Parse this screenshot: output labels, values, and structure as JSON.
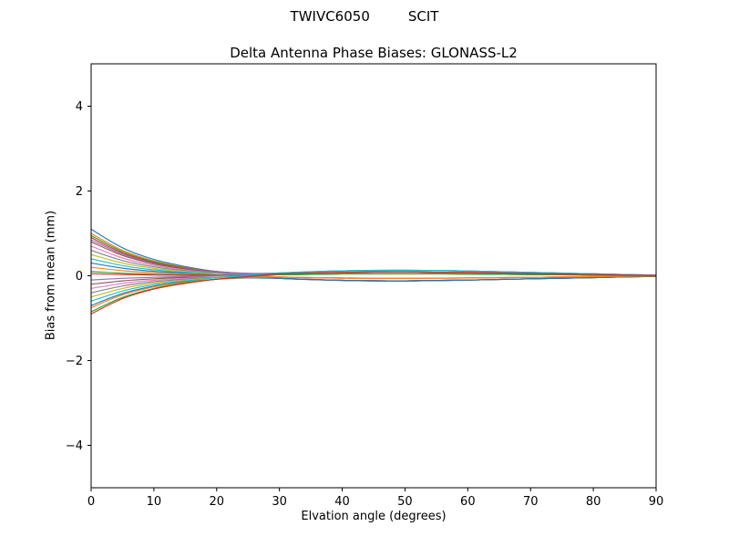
{
  "figure": {
    "suptitle_left": "TWIVC6050",
    "suptitle_right": "SCIT",
    "title": "Delta Antenna Phase Biases: GLONASS-L2",
    "xlabel": "Elvation angle (degrees)",
    "ylabel": "Bias from mean (mm)"
  },
  "chart_data": {
    "type": "line",
    "title": "Delta Antenna Phase Biases: GLONASS-L2",
    "suptitle": "TWIVC6050        SCIT",
    "xlabel": "Elvation angle (degrees)",
    "ylabel": "Bias from mean (mm)",
    "xlim": [
      0,
      90
    ],
    "ylim": [
      -5,
      5
    ],
    "x_ticks": [
      0,
      10,
      20,
      30,
      40,
      50,
      60,
      70,
      80,
      90
    ],
    "y_ticks": [
      -4,
      -2,
      0,
      2,
      4
    ],
    "grid": false,
    "legend": "none",
    "description": "Many per-satellite bias curves fan out between about -0.9 mm and +1.1 mm at 0 degrees elevation, converge toward zero near 25-30 degrees, show a small ripple of about +/-0.13 mm between 40 and 60 degrees, and flatten to zero by 90 degrees.",
    "x": [
      0,
      5,
      10,
      15,
      20,
      25,
      30,
      40,
      50,
      60,
      70,
      80,
      90
    ],
    "series": [
      {
        "name": "s01",
        "color": "#1f77b4",
        "values": [
          1.1,
          0.66,
          0.385,
          0.22,
          0.098,
          0.02,
          -0.06,
          -0.108,
          -0.12,
          -0.102,
          -0.072,
          -0.042,
          -0.012
        ]
      },
      {
        "name": "s02",
        "color": "#ff7f0e",
        "values": [
          1.0,
          0.6,
          0.35,
          0.2,
          0.094,
          0.028,
          -0.03,
          -0.054,
          -0.06,
          -0.051,
          -0.036,
          -0.021,
          -0.006
        ]
      },
      {
        "name": "s03",
        "color": "#2ca02c",
        "values": [
          0.95,
          0.57,
          0.333,
          0.19,
          0.1,
          0.048,
          0.025,
          0.045,
          0.05,
          0.043,
          0.03,
          0.018,
          0.005
        ]
      },
      {
        "name": "s04",
        "color": "#d62728",
        "values": [
          0.9,
          0.54,
          0.315,
          0.18,
          0.099,
          0.054,
          0.045,
          0.081,
          0.09,
          0.077,
          0.054,
          0.032,
          0.009
        ]
      },
      {
        "name": "s05",
        "color": "#9467bd",
        "values": [
          0.85,
          0.51,
          0.298,
          0.17,
          0.098,
          0.06,
          0.065,
          0.117,
          0.13,
          0.111,
          0.078,
          0.046,
          0.013
        ]
      },
      {
        "name": "s06",
        "color": "#8c564b",
        "values": [
          0.8,
          0.48,
          0.28,
          0.16,
          0.068,
          0.008,
          -0.06,
          -0.108,
          -0.12,
          -0.102,
          -0.072,
          -0.042,
          -0.012
        ]
      },
      {
        "name": "s07",
        "color": "#e377c2",
        "values": [
          0.7,
          0.42,
          0.245,
          0.14,
          0.064,
          0.016,
          -0.03,
          -0.054,
          -0.06,
          -0.051,
          -0.036,
          -0.021,
          -0.006
        ]
      },
      {
        "name": "s08",
        "color": "#7f7f7f",
        "values": [
          0.6,
          0.36,
          0.21,
          0.12,
          0.065,
          0.034,
          0.025,
          0.045,
          0.05,
          0.043,
          0.03,
          0.018,
          0.005
        ]
      },
      {
        "name": "s09",
        "color": "#bcbd22",
        "values": [
          0.5,
          0.3,
          0.175,
          0.1,
          0.059,
          0.038,
          0.045,
          0.081,
          0.09,
          0.077,
          0.054,
          0.032,
          0.009
        ]
      },
      {
        "name": "s10",
        "color": "#17becf",
        "values": [
          0.4,
          0.24,
          0.14,
          0.08,
          0.053,
          0.042,
          0.065,
          0.117,
          0.13,
          0.111,
          0.078,
          0.046,
          0.013
        ]
      },
      {
        "name": "s11",
        "color": "#1f77b4",
        "values": [
          0.3,
          0.18,
          0.105,
          0.06,
          0.018,
          -0.012,
          -0.06,
          -0.108,
          -0.12,
          -0.102,
          -0.072,
          -0.042,
          -0.012
        ]
      },
      {
        "name": "s12",
        "color": "#ff7f0e",
        "values": [
          0.2,
          0.12,
          0.07,
          0.04,
          0.014,
          -0.004,
          -0.03,
          -0.054,
          -0.06,
          -0.051,
          -0.036,
          -0.021,
          -0.006
        ]
      },
      {
        "name": "s13",
        "color": "#2ca02c",
        "values": [
          0.1,
          0.06,
          0.035,
          0.02,
          0.015,
          0.014,
          0.025,
          0.045,
          0.05,
          0.043,
          0.03,
          0.018,
          0.005
        ]
      },
      {
        "name": "s14",
        "color": "#d62728",
        "values": [
          0.05,
          0.03,
          0.018,
          0.01,
          0.014,
          0.02,
          0.045,
          0.081,
          0.09,
          0.077,
          0.054,
          0.032,
          0.009
        ]
      },
      {
        "name": "s15",
        "color": "#9467bd",
        "values": [
          -0.1,
          -0.06,
          -0.035,
          -0.02,
          0.003,
          0.022,
          0.065,
          0.117,
          0.13,
          0.111,
          0.078,
          0.046,
          0.013
        ]
      },
      {
        "name": "s16",
        "color": "#8c564b",
        "values": [
          -0.2,
          -0.12,
          -0.07,
          -0.04,
          -0.032,
          -0.032,
          -0.06,
          -0.108,
          -0.12,
          -0.102,
          -0.072,
          -0.042,
          -0.012
        ]
      },
      {
        "name": "s17",
        "color": "#e377c2",
        "values": [
          -0.3,
          -0.18,
          -0.105,
          -0.06,
          -0.036,
          -0.024,
          -0.03,
          -0.054,
          -0.06,
          -0.051,
          -0.036,
          -0.021,
          -0.006
        ]
      },
      {
        "name": "s18",
        "color": "#7f7f7f",
        "values": [
          -0.4,
          -0.24,
          -0.14,
          -0.08,
          -0.035,
          -0.006,
          0.025,
          0.045,
          0.05,
          0.043,
          0.03,
          0.018,
          0.005
        ]
      },
      {
        "name": "s19",
        "color": "#bcbd22",
        "values": [
          -0.5,
          -0.3,
          -0.175,
          -0.1,
          -0.041,
          -0.002,
          0.045,
          0.081,
          0.09,
          0.077,
          0.054,
          0.032,
          0.009
        ]
      },
      {
        "name": "s20",
        "color": "#17becf",
        "values": [
          -0.6,
          -0.36,
          -0.21,
          -0.12,
          -0.047,
          0.002,
          0.065,
          0.117,
          0.13,
          0.111,
          0.078,
          0.046,
          0.013
        ]
      },
      {
        "name": "s21",
        "color": "#1f77b4",
        "values": [
          -0.7,
          -0.42,
          -0.245,
          -0.14,
          -0.082,
          -0.052,
          -0.06,
          -0.108,
          -0.12,
          -0.102,
          -0.072,
          -0.042,
          -0.012
        ]
      },
      {
        "name": "s22",
        "color": "#ff7f0e",
        "values": [
          -0.75,
          -0.45,
          -0.263,
          -0.15,
          -0.081,
          -0.042,
          -0.03,
          -0.054,
          -0.06,
          -0.051,
          -0.036,
          -0.021,
          -0.006
        ]
      },
      {
        "name": "s23",
        "color": "#2ca02c",
        "values": [
          -0.85,
          -0.51,
          -0.298,
          -0.17,
          -0.08,
          -0.024,
          0.025,
          0.045,
          0.05,
          0.043,
          0.03,
          0.018,
          0.005
        ]
      },
      {
        "name": "s24",
        "color": "#d62728",
        "values": [
          -0.9,
          -0.54,
          -0.315,
          -0.18,
          -0.081,
          -0.018,
          0.045,
          0.081,
          0.09,
          0.077,
          0.054,
          0.032,
          0.009
        ]
      }
    ]
  },
  "style": {
    "axis_color": "#000000",
    "background": "#ffffff"
  }
}
